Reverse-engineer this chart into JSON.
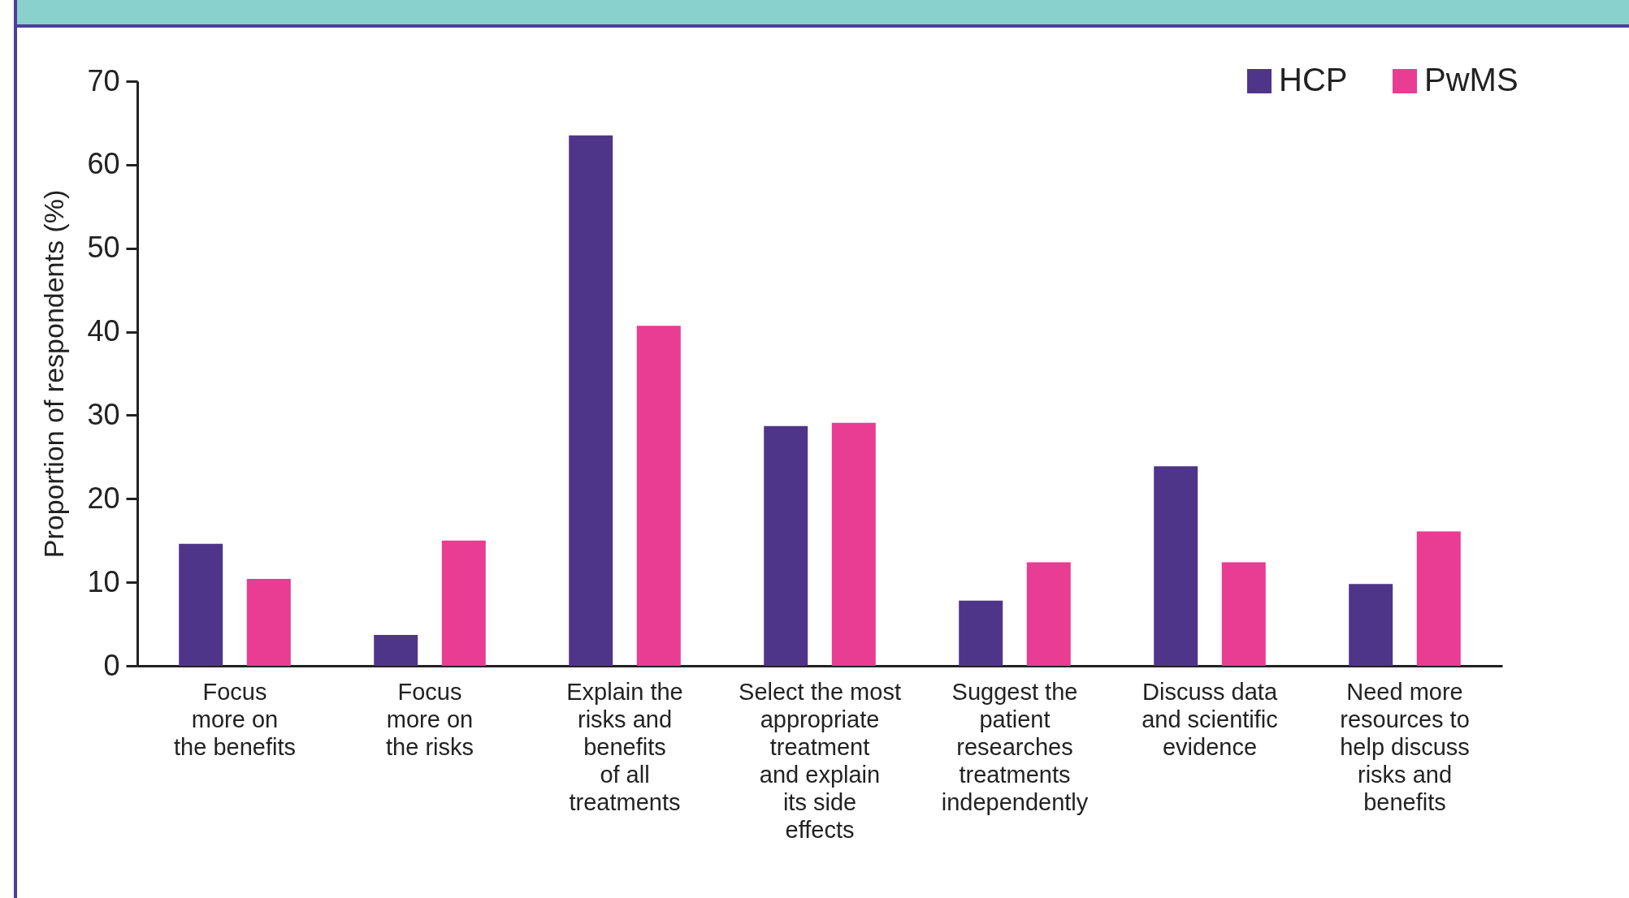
{
  "chart_data": {
    "type": "bar",
    "ylabel": "Proportion of respondents (%)",
    "categories": [
      "Focus\nmore on\nthe benefits",
      "Focus\nmore on\nthe risks",
      "Explain the\nrisks and\nbenefits\nof all\ntreatments",
      "Select the most\nappropriate\ntreatment\nand explain\nits side\neffects",
      "Suggest the\npatient\nresearches\ntreatments\nindependently",
      "Discuss data\nand scientific\nevidence",
      "Need more\nresources to\nhelp discuss\nrisks and\nbenefits"
    ],
    "series": [
      {
        "name": "HCP",
        "color": "#4f3589",
        "values": [
          14.6,
          3.7,
          63.5,
          28.7,
          7.8,
          23.9,
          9.8
        ]
      },
      {
        "name": "PwMS",
        "color": "#e93c93",
        "values": [
          10.4,
          15.0,
          40.7,
          29.1,
          12.4,
          12.4,
          16.1
        ]
      }
    ],
    "ylim": [
      0,
      70
    ],
    "yticks": [
      0,
      10,
      20,
      30,
      40,
      50,
      60,
      70
    ],
    "grid": false,
    "legend": "top right"
  }
}
